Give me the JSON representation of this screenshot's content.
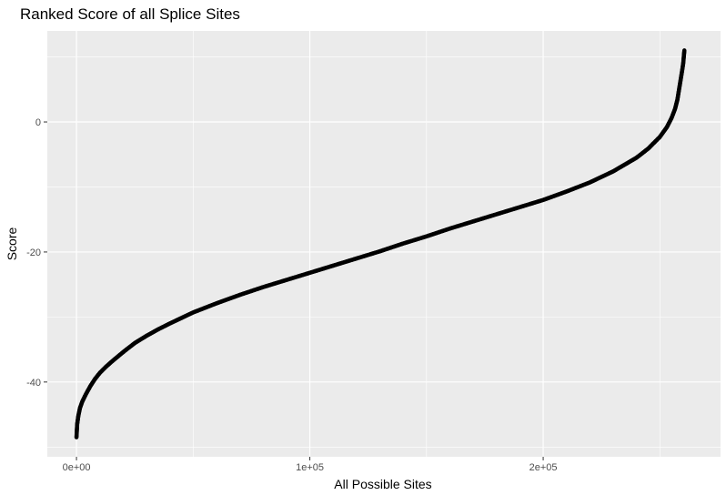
{
  "chart_data": {
    "type": "scatter",
    "title": "Ranked Score of all Splice Sites",
    "xlabel": "All Possible Sites",
    "ylabel": "Score",
    "xlim": [
      -12500,
      276000
    ],
    "ylim": [
      -51.5,
      14
    ],
    "x_ticks": [
      0,
      100000,
      200000
    ],
    "x_tick_labels": [
      "0e+00",
      "1e+05",
      "2e+05"
    ],
    "y_ticks": [
      0,
      -20,
      -40
    ],
    "y_tick_labels": [
      "0",
      "-20",
      "-40"
    ],
    "grid": true,
    "legend": "none",
    "point_color": "#000000",
    "panel_background": "#ebebeb",
    "grid_color": "#ffffff",
    "series": [
      {
        "x": [
          0,
          300,
          800,
          1500,
          2500,
          4000,
          6000,
          8000,
          10000,
          12500,
          15000,
          20000,
          25000,
          30000,
          35000,
          40000,
          50000,
          60000,
          70000,
          80000,
          90000,
          100000,
          110000,
          120000,
          130000,
          140000,
          150000,
          160000,
          170000,
          180000,
          190000,
          200000,
          210000,
          220000,
          230000,
          240000,
          245000,
          250000,
          253000,
          255000,
          256500,
          257500,
          258000,
          258500,
          259000,
          259500,
          260000,
          260500
        ],
        "y": [
          -48.5,
          -46.5,
          -45.2,
          -44.0,
          -43.0,
          -41.9,
          -40.6,
          -39.5,
          -38.6,
          -37.7,
          -36.9,
          -35.4,
          -34.0,
          -32.9,
          -31.9,
          -31.0,
          -29.3,
          -27.9,
          -26.6,
          -25.4,
          -24.3,
          -23.2,
          -22.1,
          -21.0,
          -19.9,
          -18.7,
          -17.6,
          -16.4,
          -15.3,
          -14.2,
          -13.1,
          -12.0,
          -10.7,
          -9.3,
          -7.6,
          -5.5,
          -4.1,
          -2.3,
          -0.8,
          0.6,
          2.0,
          3.4,
          4.5,
          5.6,
          6.7,
          7.8,
          9.0,
          11.0
        ]
      }
    ]
  }
}
